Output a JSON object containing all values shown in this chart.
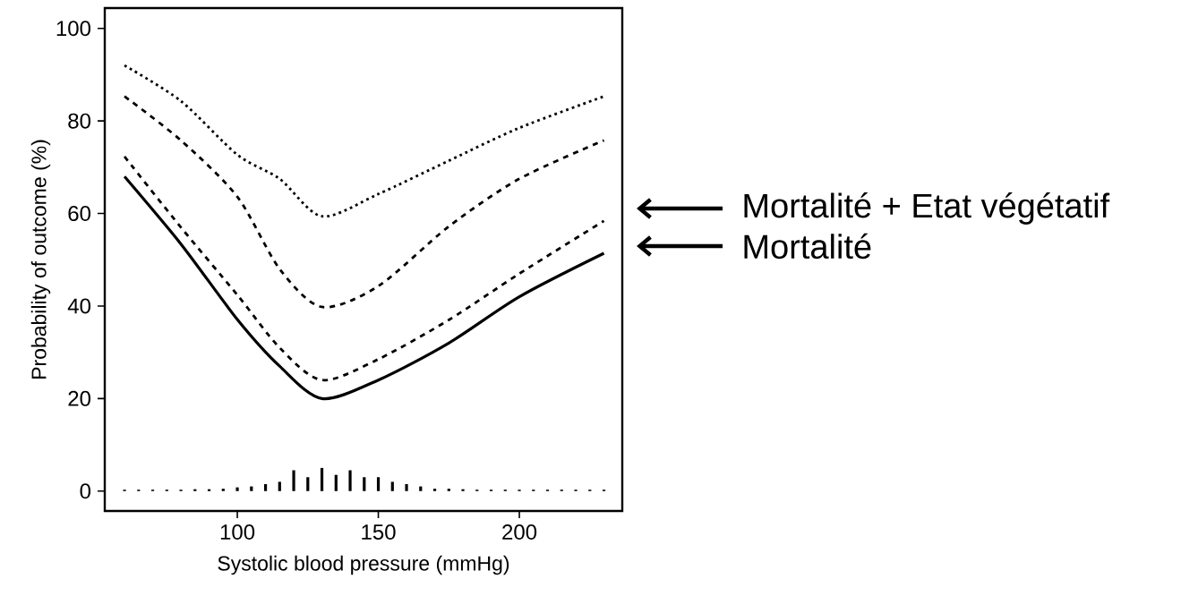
{
  "chart_data": {
    "type": "line",
    "xlabel": "Systolic blood pressure (mmHg)",
    "ylabel": "Probability of outcome (%)",
    "xlim": [
      53,
      236.5
    ],
    "ylim": [
      -4.3,
      104.4
    ],
    "xticks": [
      100,
      150,
      200
    ],
    "yticks": [
      0,
      20,
      40,
      60,
      80,
      100
    ],
    "grid": false,
    "marker": "none",
    "series": [
      {
        "color": "#000000",
        "line_style": "dotted",
        "x": [
          60,
          80,
          100,
          115,
          130,
          150,
          175,
          200,
          230
        ],
        "values": [
          92,
          84.3,
          72.7,
          67.5,
          59.4,
          64.2,
          71.4,
          78.5,
          85.3
        ]
      },
      {
        "color": "#000000",
        "line_style": "dashed",
        "x": [
          60,
          80,
          100,
          115,
          130,
          150,
          175,
          200,
          230
        ],
        "values": [
          85.3,
          75.8,
          63.6,
          48,
          39.8,
          44.3,
          57.2,
          67.5,
          75.8
        ]
      },
      {
        "color": "#000000",
        "line_style": "dashed",
        "x": [
          60,
          80,
          100,
          115,
          130,
          150,
          175,
          200,
          230
        ],
        "values": [
          72.3,
          57,
          42.4,
          31,
          24,
          28.5,
          37,
          47,
          58.4
        ]
      },
      {
        "color": "#000000",
        "line_style": "solid",
        "x": [
          60,
          80,
          100,
          115,
          130,
          150,
          175,
          200,
          230
        ],
        "values": [
          68,
          53.4,
          37.1,
          27,
          20,
          24,
          32,
          42,
          51.4
        ]
      },
      {
        "type": "bar",
        "color": "#000000",
        "x": [
          60,
          65,
          70,
          75,
          80,
          85,
          90,
          95,
          100,
          105,
          110,
          115,
          120,
          125,
          130,
          135,
          140,
          145,
          150,
          155,
          160,
          165,
          170,
          175,
          180,
          185,
          190,
          195,
          200,
          205,
          210,
          215,
          220,
          225,
          230
        ],
        "values": [
          0.3,
          0.3,
          0.3,
          0.3,
          0.3,
          0.4,
          0.4,
          0.5,
          0.8,
          1,
          1.5,
          2,
          4.5,
          3,
          5,
          3.5,
          4.5,
          3,
          3,
          2,
          1.5,
          1,
          0.5,
          0.5,
          0.4,
          0.3,
          0.3,
          0.3,
          0.3,
          0.3,
          0.3,
          0.3,
          0.3,
          0.3,
          0.3
        ]
      }
    ],
    "annotations": [
      "Mortalité + Etat végétatif",
      "Mortalité"
    ]
  }
}
